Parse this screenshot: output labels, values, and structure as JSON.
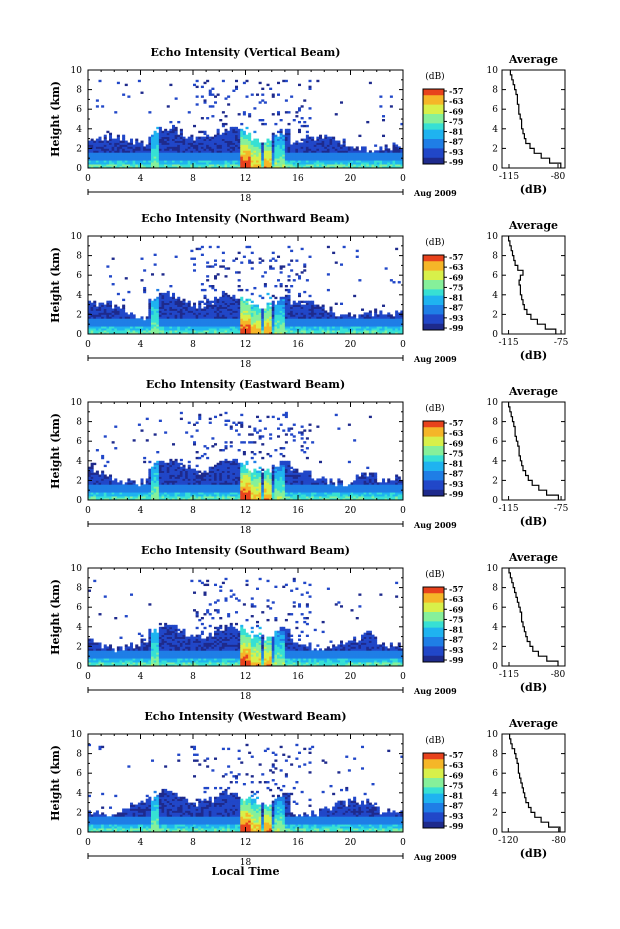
{
  "chart_data": [
    {
      "type": "heatmap",
      "title": "Echo Intensity (Vertical Beam)",
      "ylabel": "Height (km)",
      "ylim": [
        0,
        10
      ],
      "yticks": [
        "0",
        "2",
        "4",
        "6",
        "8",
        "10"
      ],
      "xlim": [
        0,
        24
      ],
      "xticks": [
        "0",
        "4",
        "8",
        "12",
        "16",
        "20",
        "0"
      ],
      "date_day": "18",
      "date_label": "Aug 2009",
      "colorbar": {
        "unit": "(dB)",
        "ticks": [
          "-57",
          "-63",
          "-69",
          "-75",
          "-81",
          "-87",
          "-93",
          "-99"
        ]
      },
      "avg": {
        "title": "Average",
        "xlabel": "(dB)",
        "xticks": [
          "-115",
          "-80"
        ],
        "xlim": [
          -120,
          -75
        ],
        "ylim": [
          0,
          10
        ],
        "yticks": [
          "0",
          "2",
          "4",
          "6",
          "8",
          "10"
        ],
        "height": [
          0,
          0.5,
          1,
          1.5,
          2,
          2.5,
          3,
          3.5,
          4,
          4.5,
          5,
          5.5,
          6,
          6.5,
          7,
          7.5,
          8,
          8.5,
          9,
          9.5
        ],
        "value": [
          -78,
          -86,
          -92,
          -97,
          -100,
          -103,
          -104,
          -105,
          -106,
          -106,
          -107,
          -108,
          -108,
          -109,
          -109,
          -110,
          -111,
          -112,
          -113,
          -114
        ]
      }
    },
    {
      "type": "heatmap",
      "title": "Echo Intensity (Northward Beam)",
      "ylabel": "Height (km)",
      "ylim": [
        0,
        10
      ],
      "yticks": [
        "0",
        "2",
        "4",
        "6",
        "8",
        "10"
      ],
      "xlim": [
        0,
        24
      ],
      "xticks": [
        "0",
        "4",
        "8",
        "12",
        "16",
        "20",
        "0"
      ],
      "date_day": "18",
      "date_label": "Aug 2009",
      "colorbar": {
        "unit": "(dB)",
        "ticks": [
          "-57",
          "-63",
          "-69",
          "-75",
          "-81",
          "-87",
          "-93",
          "-99"
        ]
      },
      "avg": {
        "title": "Average",
        "xlabel": "(dB)",
        "xticks": [
          "-115",
          "-75"
        ],
        "xlim": [
          -120,
          -72
        ],
        "ylim": [
          0,
          10
        ],
        "yticks": [
          "0",
          "2",
          "4",
          "6",
          "8",
          "10"
        ],
        "height": [
          0,
          0.5,
          1,
          1.5,
          2,
          2.5,
          3,
          3.5,
          4,
          4.5,
          5,
          5.5,
          6,
          6.5,
          7,
          7.5,
          8,
          8.5,
          9,
          9.5
        ],
        "value": [
          -79,
          -87,
          -93,
          -98,
          -101,
          -103,
          -104,
          -105,
          -106,
          -106,
          -107,
          -106,
          -104,
          -108,
          -110,
          -111,
          -112,
          -113,
          -114,
          -115
        ]
      }
    },
    {
      "type": "heatmap",
      "title": "Echo Intensity (Eastward Beam)",
      "ylabel": "Height (km)",
      "ylim": [
        0,
        10
      ],
      "yticks": [
        "0",
        "2",
        "4",
        "6",
        "8",
        "10"
      ],
      "xlim": [
        0,
        24
      ],
      "xticks": [
        "0",
        "4",
        "8",
        "12",
        "16",
        "20",
        "0"
      ],
      "date_day": "18",
      "date_label": "Aug 2009",
      "colorbar": {
        "unit": "(dB)",
        "ticks": [
          "-57",
          "-63",
          "-69",
          "-75",
          "-81",
          "-87",
          "-93",
          "-99"
        ]
      },
      "avg": {
        "title": "Average",
        "xlabel": "(dB)",
        "xticks": [
          "-115",
          "-75"
        ],
        "xlim": [
          -120,
          -72
        ],
        "ylim": [
          0,
          10
        ],
        "yticks": [
          "0",
          "2",
          "4",
          "6",
          "8",
          "10"
        ],
        "height": [
          0,
          0.5,
          1,
          1.5,
          2,
          2.5,
          3,
          3.5,
          4,
          4.5,
          5,
          5.5,
          6,
          6.5,
          7,
          7.5,
          8,
          8.5,
          9,
          9.5
        ],
        "value": [
          -77,
          -86,
          -92,
          -97,
          -100,
          -102,
          -104,
          -105,
          -106,
          -107,
          -107,
          -108,
          -109,
          -110,
          -110,
          -111,
          -112,
          -113,
          -114,
          -115
        ]
      }
    },
    {
      "type": "heatmap",
      "title": "Echo Intensity (Southward Beam)",
      "ylabel": "Height (km)",
      "ylim": [
        0,
        10
      ],
      "yticks": [
        "0",
        "2",
        "4",
        "6",
        "8",
        "10"
      ],
      "xlim": [
        0,
        24
      ],
      "xticks": [
        "0",
        "4",
        "8",
        "12",
        "16",
        "20",
        "0"
      ],
      "date_day": "18",
      "date_label": "Aug 2009",
      "colorbar": {
        "unit": "(dB)",
        "ticks": [
          "-57",
          "-63",
          "-69",
          "-75",
          "-81",
          "-87",
          "-93",
          "-99"
        ]
      },
      "avg": {
        "title": "Average",
        "xlabel": "(dB)",
        "xticks": [
          "-115",
          "-80"
        ],
        "xlim": [
          -120,
          -75
        ],
        "ylim": [
          0,
          10
        ],
        "yticks": [
          "0",
          "2",
          "4",
          "6",
          "8",
          "10"
        ],
        "height": [
          0,
          0.5,
          1,
          1.5,
          2,
          2.5,
          3,
          3.5,
          4,
          4.5,
          5,
          5.5,
          6,
          6.5,
          7,
          7.5,
          8,
          8.5,
          9,
          9.5
        ],
        "value": [
          -80,
          -88,
          -94,
          -98,
          -100,
          -102,
          -103,
          -104,
          -105,
          -106,
          -106,
          -107,
          -108,
          -109,
          -110,
          -111,
          -112,
          -113,
          -114,
          -115
        ]
      }
    },
    {
      "type": "heatmap",
      "title": "Echo Intensity (Westward Beam)",
      "ylabel": "Height (km)",
      "ylim": [
        0,
        10
      ],
      "yticks": [
        "0",
        "2",
        "4",
        "6",
        "8",
        "10"
      ],
      "xlim": [
        0,
        24
      ],
      "xticks": [
        "0",
        "4",
        "8",
        "12",
        "16",
        "20",
        "0"
      ],
      "date_day": "18",
      "date_label": "Aug 2009",
      "xlabel": "Local Time",
      "colorbar": {
        "unit": "(dB)",
        "ticks": [
          "-57",
          "-63",
          "-69",
          "-75",
          "-81",
          "-87",
          "-93",
          "-99"
        ]
      },
      "avg": {
        "title": "Average",
        "xlabel": "(dB)",
        "xticks": [
          "-120",
          "-80"
        ],
        "xlim": [
          -125,
          -75
        ],
        "ylim": [
          0,
          10
        ],
        "yticks": [
          "0",
          "2",
          "4",
          "6",
          "8",
          "10"
        ],
        "height": [
          0,
          0.5,
          1,
          1.5,
          2,
          2.5,
          3,
          3.5,
          4,
          4.5,
          5,
          5.5,
          6,
          6.5,
          7,
          7.5,
          8,
          8.5,
          9,
          9.5
        ],
        "value": [
          -79,
          -88,
          -94,
          -99,
          -102,
          -104,
          -106,
          -107,
          -108,
          -109,
          -110,
          -111,
          -112,
          -112,
          -113,
          -114,
          -115,
          -117,
          -118,
          -119
        ]
      }
    }
  ]
}
